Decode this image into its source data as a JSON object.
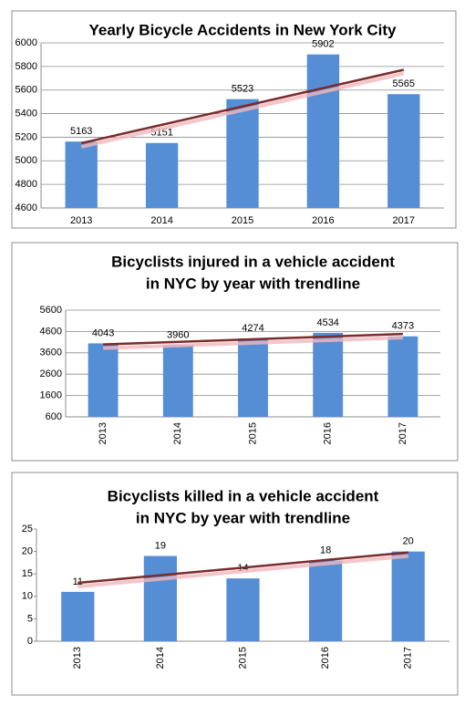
{
  "chart_data": [
    {
      "type": "bar",
      "title": "Yearly Bicycle Accidents in New York City",
      "categories": [
        "2013",
        "2014",
        "2015",
        "2016",
        "2017"
      ],
      "values": [
        5163,
        5151,
        5523,
        5902,
        5565
      ],
      "color": "#558ed5",
      "ylim": [
        4600,
        6000
      ],
      "yticks": [
        4600,
        4800,
        5000,
        5200,
        5400,
        5600,
        5800,
        6000
      ],
      "grid": true,
      "trendline": true,
      "trendline_color": "#7b2c2c"
    },
    {
      "type": "bar",
      "title": [
        "Bicyclists injured in a vehicle accident",
        "in NYC by year with trendline"
      ],
      "categories": [
        "2013",
        "2014",
        "2015",
        "2016",
        "2017"
      ],
      "values": [
        4043,
        3960,
        4274,
        4534,
        4373
      ],
      "color": "#558ed5",
      "ylim": [
        600,
        5600
      ],
      "yticks": [
        600,
        1600,
        2600,
        3600,
        4600,
        5600
      ],
      "grid": true,
      "trendline": true,
      "trendline_color": "#7b2c2c"
    },
    {
      "type": "bar",
      "title": [
        "Bicyclists killed in a vehicle accident",
        "in NYC  by year with trendline"
      ],
      "categories": [
        "2013",
        "2014",
        "2015",
        "2016",
        "2017"
      ],
      "values": [
        11,
        19,
        14,
        18,
        20
      ],
      "color": "#558ed5",
      "ylim": [
        0,
        25
      ],
      "yticks": [
        0,
        5,
        10,
        15,
        20,
        25
      ],
      "grid": false,
      "trendline": true,
      "trendline_color": "#7b2c2c"
    }
  ]
}
